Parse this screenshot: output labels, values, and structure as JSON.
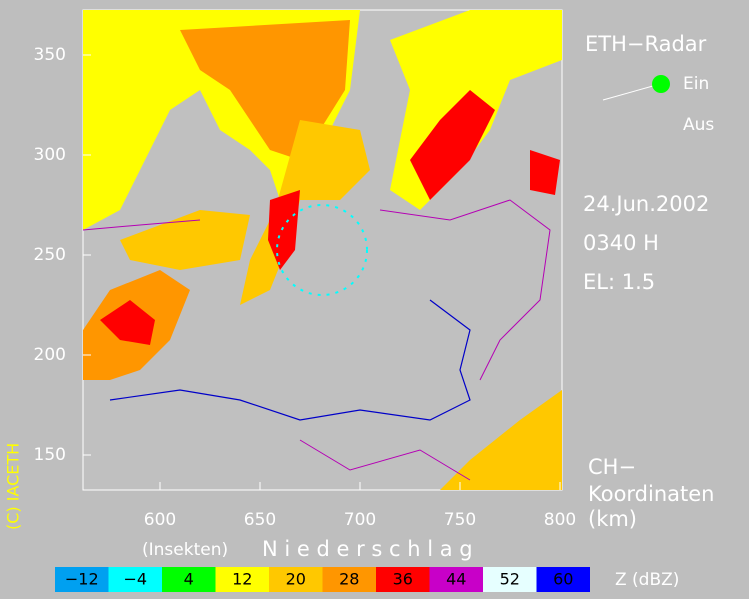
{
  "header": {
    "title": "ETH−Radar",
    "on": "Ein",
    "off": "Aus"
  },
  "info": {
    "date": "24.Jun.2002",
    "time": "0340 H",
    "elevation": "EL: 1.5"
  },
  "coords": {
    "line1": "CH−",
    "line2": "Koordinaten",
    "unit": "(km)"
  },
  "axes": {
    "y_labels": [
      "350",
      "300",
      "250",
      "200",
      "150"
    ],
    "x_labels": [
      "600",
      "650",
      "700",
      "750",
      "800"
    ]
  },
  "copyright": "(C) IACETH",
  "legend": {
    "insects": "(Insekten)",
    "precip": "N i e d e r s c h l a g",
    "unit": "Z   (dBZ)",
    "items": [
      {
        "label": "−12",
        "color": "#00a0f0"
      },
      {
        "label": "−4",
        "color": "#00ffff"
      },
      {
        "label": "4",
        "color": "#00ff00"
      },
      {
        "label": "12",
        "color": "#ffff00"
      },
      {
        "label": "20",
        "color": "#ffc800"
      },
      {
        "label": "28",
        "color": "#ff9600"
      },
      {
        "label": "36",
        "color": "#ff0000"
      },
      {
        "label": "44",
        "color": "#c800c8"
      },
      {
        "label": "52",
        "color": "#e6ffff"
      },
      {
        "label": "60",
        "color": "#0000ff"
      }
    ]
  }
}
